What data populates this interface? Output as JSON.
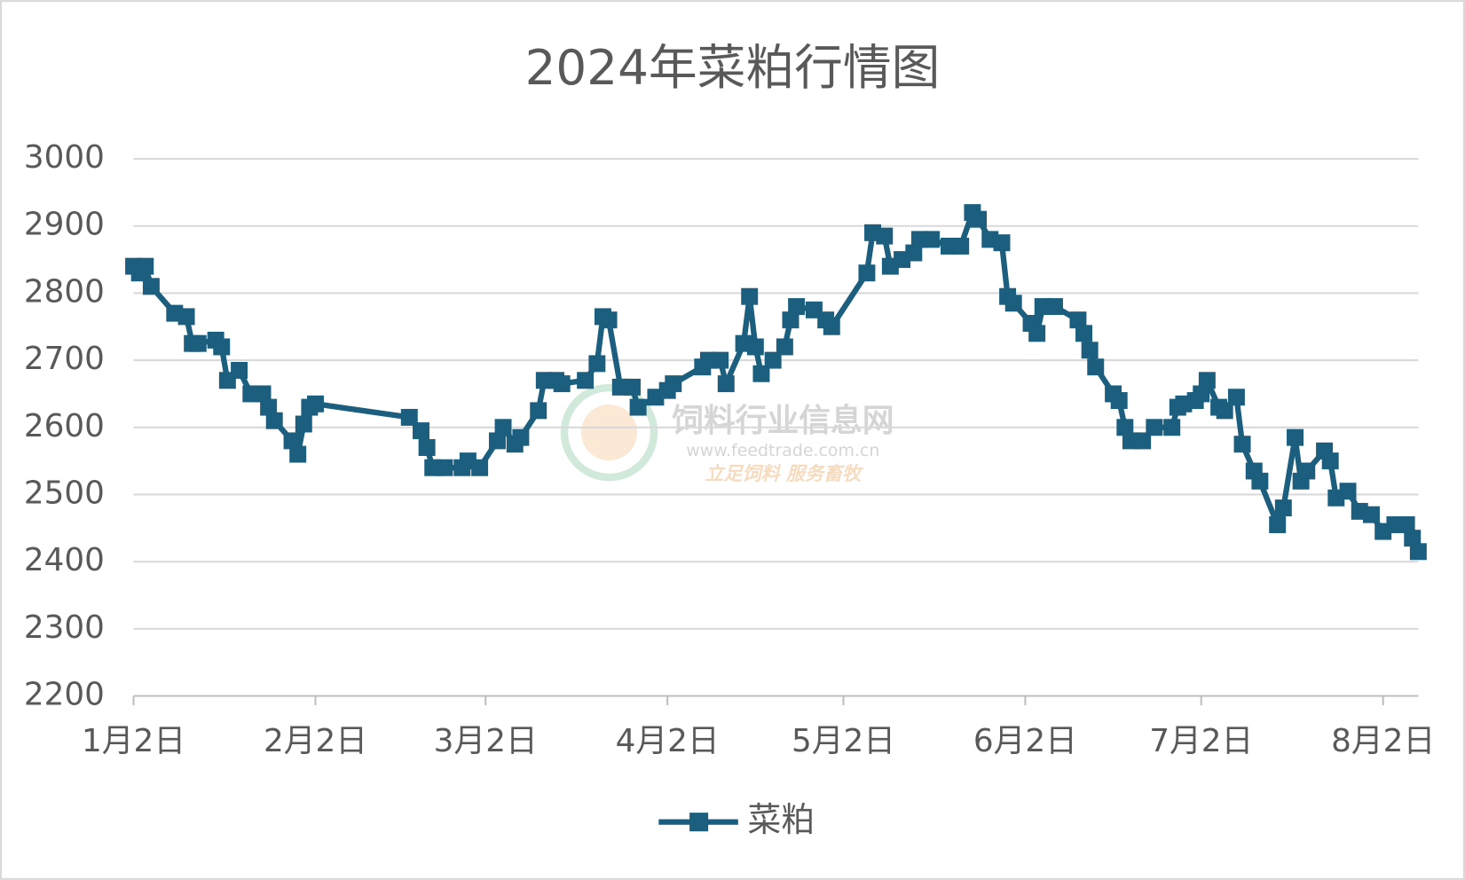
{
  "chart_data": {
    "type": "line",
    "title": "2024年菜粕行情图",
    "x": [
      "1月2日",
      "1月3日",
      "1月4日",
      "1月5日",
      "1月9日",
      "1月11日",
      "1月12日",
      "1月13日",
      "1月16日",
      "1月17日",
      "1月18日",
      "1月20日",
      "1月22日",
      "1月24日",
      "1月25日",
      "1月26日",
      "1月29日",
      "1月30日",
      "1月31日",
      "2月1日",
      "2月2日",
      "2月18日",
      "2月20日",
      "2月21日",
      "2月22日",
      "2月24日",
      "2月27日",
      "2月28日",
      "3月1日",
      "3月4日",
      "3月5日",
      "3月7日",
      "3月8日",
      "3月11日",
      "3月12日",
      "3月14日",
      "3月15日",
      "3月19日",
      "3月21日",
      "3月22日",
      "3月23日",
      "3月25日",
      "3月27日",
      "3月28日",
      "3月31日",
      "4月2日",
      "4月3日",
      "4月8日",
      "4月9日",
      "4月11日",
      "4月12日",
      "4月15日",
      "4月16日",
      "4月17日",
      "4月18日",
      "4月20日",
      "4月22日",
      "4月23日",
      "4月24日",
      "4月27日",
      "4月29日",
      "4月30日",
      "5月6日",
      "5月7日",
      "5月9日",
      "5月10日",
      "5月12日",
      "5月14日",
      "5月15日",
      "5月17日",
      "5月20日",
      "5月22日",
      "5月24日",
      "5月25日",
      "5月27日",
      "5月29日",
      "5月30日",
      "5月31日",
      "6月3日",
      "6月4日",
      "6月5日",
      "6月7日",
      "6月11日",
      "6月12日",
      "6月13日",
      "6月14日",
      "6月17日",
      "6月18日",
      "6月19日",
      "6月20日",
      "6月22日",
      "6月24日",
      "6月27日",
      "6月28日",
      "6月29日",
      "7月1日",
      "7月2日",
      "7月3日",
      "7月5日",
      "7月6日",
      "7月8日",
      "7月9日",
      "7月11日",
      "7月12日",
      "7月15日",
      "7月16日",
      "7月18日",
      "7月19日",
      "7月20日",
      "7月23日",
      "7月24日",
      "7月25日",
      "7月27日",
      "7月29日",
      "7月31日",
      "8月2日",
      "8月4日",
      "8月6日",
      "8月7日",
      "8月8日"
    ],
    "series": [
      {
        "name": "菜粕",
        "color": "#1b5e7e",
        "values": [
          2840,
          2830,
          2840,
          2810,
          2770,
          2765,
          2725,
          2725,
          2730,
          2720,
          2670,
          2685,
          2650,
          2650,
          2630,
          2610,
          2580,
          2560,
          2605,
          2630,
          2635,
          2615,
          2595,
          2570,
          2540,
          2540,
          2540,
          2550,
          2540,
          2580,
          2600,
          2575,
          2585,
          2625,
          2670,
          2670,
          2665,
          2670,
          2695,
          2765,
          2760,
          2660,
          2660,
          2630,
          2645,
          2655,
          2665,
          2690,
          2700,
          2700,
          2665,
          2725,
          2795,
          2720,
          2680,
          2700,
          2720,
          2760,
          2780,
          2775,
          2760,
          2750,
          2830,
          2890,
          2885,
          2840,
          2850,
          2860,
          2880,
          2880,
          2870,
          2870,
          2920,
          2910,
          2880,
          2875,
          2795,
          2785,
          2755,
          2740,
          2780,
          2780,
          2760,
          2740,
          2715,
          2690,
          2650,
          2640,
          2600,
          2580,
          2580,
          2600,
          2600,
          2630,
          2635,
          2640,
          2650,
          2670,
          2630,
          2625,
          2645,
          2575,
          2535,
          2520,
          2455,
          2480,
          2585,
          2520,
          2535,
          2565,
          2550,
          2495,
          2505,
          2475,
          2470,
          2445,
          2455,
          2455,
          2435,
          2415
        ]
      }
    ],
    "xlim": [
      "1月2日",
      "8月8日"
    ],
    "xticks": [
      "1月2日",
      "2月2日",
      "3月2日",
      "4月2日",
      "5月2日",
      "6月2日",
      "7月2日",
      "8月2日"
    ],
    "ylim": [
      2200,
      3000
    ],
    "yticks": [
      2200,
      2300,
      2400,
      2500,
      2600,
      2700,
      2800,
      2900,
      3000
    ],
    "grid": true,
    "legend": "bottom"
  },
  "watermark": {
    "name": "饲料行业信息网",
    "url": "www.feedtrade.com.cn",
    "slogan": "立足饲料 服务畜牧"
  }
}
